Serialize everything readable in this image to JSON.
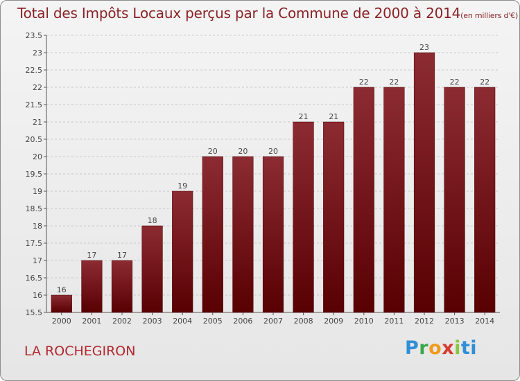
{
  "chart_data": {
    "type": "bar",
    "title": "Total des Impôts Locaux perçus par la Commune de 2000 à 2014",
    "unit_note": "(en milliers d'€)",
    "categories": [
      "2000",
      "2001",
      "2002",
      "2003",
      "2004",
      "2005",
      "2006",
      "2007",
      "2008",
      "2009",
      "2010",
      "2011",
      "2012",
      "2013",
      "2014"
    ],
    "values": [
      16,
      17,
      17,
      18,
      19,
      20,
      20,
      20,
      21,
      21,
      22,
      22,
      23,
      22,
      22
    ],
    "value_labels": [
      "16",
      "17",
      "17",
      "18",
      "19",
      "20",
      "20",
      "20",
      "21",
      "21",
      "22",
      "22",
      "23",
      "22",
      "22"
    ],
    "ylim": [
      15.5,
      23.5
    ],
    "yticks": [
      15.5,
      16,
      16.5,
      17,
      17.5,
      18,
      18.5,
      19,
      19.5,
      20,
      20.5,
      21,
      21.5,
      22,
      22.5,
      23,
      23.5
    ],
    "grid": "horizontal-dashed",
    "bar_color": "#7a161b"
  },
  "footer": {
    "commune": "LA ROCHEGIRON",
    "logo_letters": [
      "P",
      "r",
      "o",
      "x",
      "i",
      "ti"
    ]
  }
}
